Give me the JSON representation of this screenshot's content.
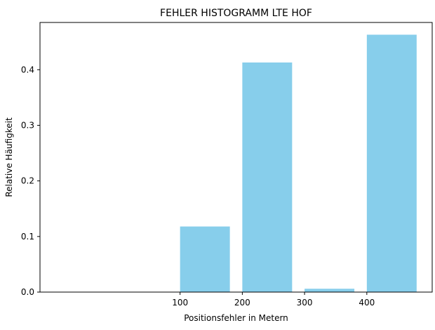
{
  "chart_data": {
    "type": "bar",
    "title": "FEHLER HISTOGRAMM LTE HOF",
    "xlabel": "Positionsfehler in Metern",
    "ylabel": "Relative Häufigkeit",
    "bin_width": 80,
    "bins": [
      {
        "start": 0,
        "value": 0.0
      },
      {
        "start": 100,
        "value": 0.118
      },
      {
        "start": 200,
        "value": 0.413
      },
      {
        "start": 300,
        "value": 0.006
      },
      {
        "start": 400,
        "value": 0.463
      }
    ],
    "xlim": [
      -125,
      505
    ],
    "ylim": [
      0,
      0.485
    ],
    "xticks": [
      100,
      200,
      300,
      400
    ],
    "yticks": [
      0.0,
      0.1,
      0.2,
      0.3,
      0.4
    ],
    "ytick_labels": [
      "0.0",
      "0.1",
      "0.2",
      "0.3",
      "0.4"
    ],
    "bar_color": "#87ceeb",
    "grid": false,
    "legend": null
  }
}
